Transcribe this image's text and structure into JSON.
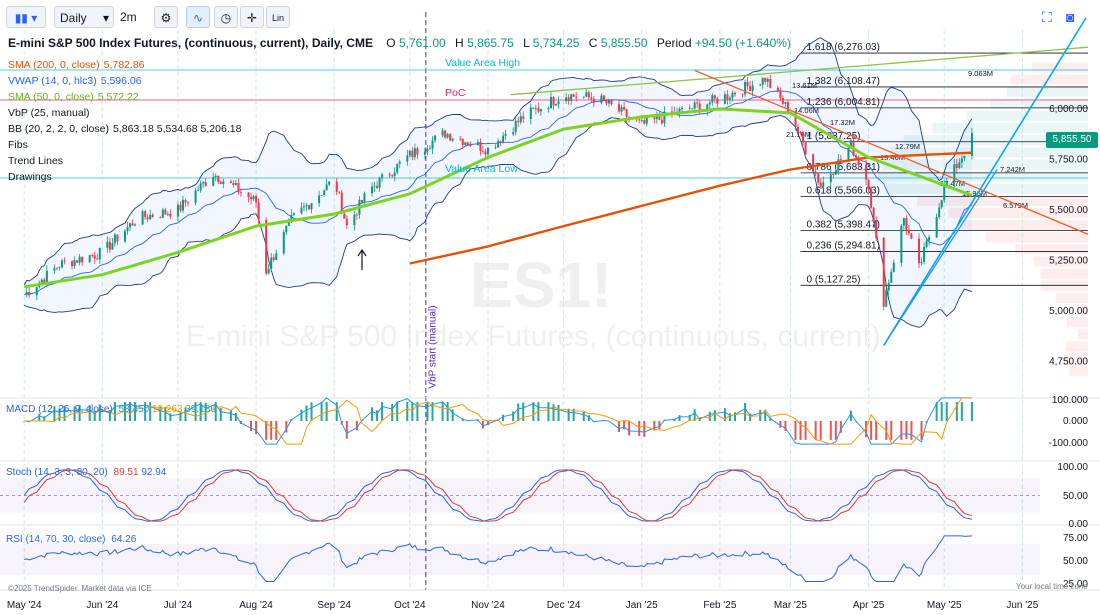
{
  "toolbar": {
    "interval": "Daily",
    "interval_short": "2m",
    "lin_label": "Lin"
  },
  "header": {
    "symbol_title": "E-mini S&P 500 Index Futures, (continuous, current), Daily, CME",
    "o_label": "O",
    "o_value": "5,761.00",
    "h_label": "H",
    "h_value": "5,865.75",
    "l_label": "L",
    "l_value": "5,734.25",
    "c_label": "C",
    "c_value": "5,855.50",
    "period_label": "Period",
    "period_value": "+94.50 (+1.640%)"
  },
  "legend": {
    "sma200": {
      "label": "SMA (200, 0, close)",
      "value": "5,782.86",
      "color": "#e65100"
    },
    "vwap": {
      "label": "VWAP (14, 0, hlc3)",
      "value": "5,596.06",
      "color": "#2962ff"
    },
    "sma50": {
      "label": "SMA (50, 0, close)",
      "value": "5,572.22",
      "color": "#7ed321"
    },
    "vbp": {
      "label": "VbP (25, manual)"
    },
    "bb": {
      "label": "BB (20, 2, 2, 0, close)",
      "value": "5,863.18 5,534.68 5,206.18"
    },
    "fibs": {
      "label": "Fibs"
    },
    "trend": {
      "label": "Trend Lines"
    },
    "drawings": {
      "label": "Drawings"
    }
  },
  "annotations": {
    "value_area_high": "Value Area High",
    "poc": "PoC",
    "value_area_low": "Value Area Low",
    "vbp_start": "VbP start (manual)",
    "watermark_symbol": "ES1!",
    "watermark_name": "E-mini S&P 500 Index Futures, (continuous, current)"
  },
  "vbp_labels": [
    "9.063M",
    "13.61M",
    "14.06M",
    "21.16M",
    "17.32M",
    "12.79M",
    "13.46M",
    "7.242M",
    "17.47M",
    "15.96M",
    "6.579M"
  ],
  "fib_levels": [
    {
      "label": "1.618 (6,276.03)",
      "price": 6276.03
    },
    {
      "label": "1.382 (6,108.47)",
      "price": 6108.47
    },
    {
      "label": "1.236 (6,004.81)",
      "price": 6004.81
    },
    {
      "label": "1 (5,837.25)",
      "price": 5837.25
    },
    {
      "label": "0.786 (5,683.31)",
      "price": 5683.31
    },
    {
      "label": "0.618 (5,566.03)",
      "price": 5566.03
    },
    {
      "label": "0.382 (5,398.47)",
      "price": 5398.47
    },
    {
      "label": "0.236 (5,294.81)",
      "price": 5294.81
    },
    {
      "label": "0 (5,127.25)",
      "price": 5127.25
    }
  ],
  "current_price": "5,855.50",
  "panes": {
    "macd": {
      "label": "MACD (12, 26, 9, close)",
      "v1": "58.450",
      "v2": "19.263",
      "v3": "39.186",
      "ticks": [
        "100.000",
        "0.000",
        "-100.000"
      ]
    },
    "stoch": {
      "label": "Stoch (14, 3, 3, 80, 20)",
      "v1": "89.51",
      "v2": "92.94",
      "ticks": [
        "100.00",
        "50.00",
        "0.00"
      ]
    },
    "rsi": {
      "label": "RSI (14, 70, 30, close)",
      "v1": "64.26",
      "ticks": [
        "75.00",
        "50.00",
        "25.00"
      ]
    }
  },
  "footer": {
    "copyright": "©2025 TrendSpider. Market data via ICE",
    "timezone": "Your local time zone"
  },
  "chart_data": {
    "type": "line",
    "title": "E-mini S&P 500 Index Futures, (continuous, current), Daily, CME",
    "y_ticks": [
      "6,000.00",
      "5,750.00",
      "5,500.00",
      "5,250.00",
      "5,000.00",
      "4,750.00"
    ],
    "y_tick_values": [
      6000,
      5750,
      5500,
      5250,
      5000,
      4750
    ],
    "ylim": [
      4570,
      6390
    ],
    "x_ticks": [
      "May '24",
      "Jun '24",
      "Jul '24",
      "Aug '24",
      "Sep '24",
      "Oct '24",
      "Nov '24",
      "Dec '24",
      "Jan '25",
      "Feb '25",
      "Mar '25",
      "Apr '25",
      "May '25",
      "Jun '25"
    ],
    "series": [
      {
        "name": "ES1!",
        "x": [
          "2024-05-01",
          "2024-05-15",
          "2024-06-01",
          "2024-06-15",
          "2024-07-01",
          "2024-07-15",
          "2024-08-01",
          "2024-08-05",
          "2024-08-15",
          "2024-09-01",
          "2024-09-06",
          "2024-09-15",
          "2024-10-01",
          "2024-10-15",
          "2024-11-01",
          "2024-11-15",
          "2024-12-01",
          "2024-12-15",
          "2025-01-01",
          "2025-01-15",
          "2025-02-01",
          "2025-02-19",
          "2025-03-01",
          "2025-03-13",
          "2025-03-25",
          "2025-04-01",
          "2025-04-07",
          "2025-04-15",
          "2025-04-21",
          "2025-05-01",
          "2025-05-12"
        ],
        "close": [
          5080,
          5230,
          5290,
          5460,
          5500,
          5680,
          5540,
          5200,
          5450,
          5650,
          5420,
          5600,
          5770,
          5880,
          5800,
          5960,
          6070,
          6050,
          5920,
          5980,
          6050,
          6150,
          5980,
          5620,
          5820,
          5630,
          5050,
          5460,
          5210,
          5610,
          5855
        ]
      },
      {
        "name": "SMA (200, 0, close)",
        "x": [
          "2024-10-01",
          "2024-11-01",
          "2024-12-01",
          "2025-01-01",
          "2025-02-01",
          "2025-03-01",
          "2025-04-01",
          "2025-05-12"
        ],
        "close": [
          5235,
          5320,
          5420,
          5520,
          5620,
          5700,
          5760,
          5783
        ]
      },
      {
        "name": "SMA (50, 0, close)",
        "x": [
          "2024-05-01",
          "2024-06-01",
          "2024-07-01",
          "2024-08-01",
          "2024-09-01",
          "2024-10-01",
          "2024-11-01",
          "2024-12-01",
          "2025-01-01",
          "2025-02-01",
          "2025-03-01",
          "2025-04-01",
          "2025-05-12"
        ],
        "close": [
          5120,
          5180,
          5290,
          5420,
          5480,
          5580,
          5760,
          5900,
          5960,
          6000,
          5980,
          5760,
          5572
        ]
      }
    ]
  }
}
